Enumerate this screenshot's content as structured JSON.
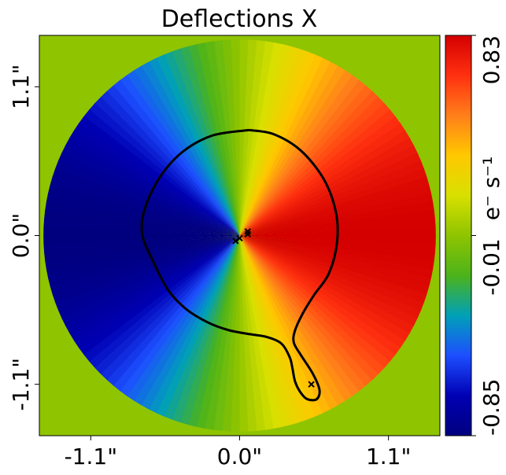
{
  "chart_data": {
    "type": "heatmap",
    "title": "Deflections X",
    "xlabel": "",
    "ylabel": "",
    "x_ticks": [
      {
        "value": -1.1,
        "label": "-1.1\""
      },
      {
        "value": 0.0,
        "label": "0.0\""
      },
      {
        "value": 1.1,
        "label": "1.1\""
      }
    ],
    "y_ticks": [
      {
        "value": 1.1,
        "label": "1.1\""
      },
      {
        "value": 0.0,
        "label": "0.0\""
      },
      {
        "value": -1.1,
        "label": "-1.1\""
      }
    ],
    "xlim": [
      -1.48,
      1.48
    ],
    "ylim": [
      -1.48,
      1.48
    ],
    "mask_radius": 1.45,
    "background_value": -0.01,
    "colorbar": {
      "min": -0.85,
      "max": 0.83,
      "ticks": [
        {
          "value": 0.83,
          "label": "0.83"
        },
        {
          "value": -0.01,
          "label": "-0.01"
        },
        {
          "value": -0.85,
          "label": "-0.85"
        }
      ],
      "unit_label": "e⁻ s⁻¹",
      "colormap": [
        "#00007f",
        "#0000b4",
        "#1d4fff",
        "#00a0b8",
        "#4cb31a",
        "#8fc400",
        "#d8e000",
        "#ffc800",
        "#ff7f1a",
        "#ff3010",
        "#d40000"
      ]
    },
    "critical_curve": [
      [
        0.07,
        0.78
      ],
      [
        0.25,
        0.75
      ],
      [
        0.45,
        0.63
      ],
      [
        0.62,
        0.42
      ],
      [
        0.71,
        0.18
      ],
      [
        0.72,
        -0.05
      ],
      [
        0.66,
        -0.28
      ],
      [
        0.55,
        -0.44
      ],
      [
        0.47,
        -0.57
      ],
      [
        0.41,
        -0.7
      ],
      [
        0.4,
        -0.79
      ],
      [
        0.45,
        -0.88
      ],
      [
        0.54,
        -1.02
      ],
      [
        0.59,
        -1.14
      ],
      [
        0.57,
        -1.21
      ],
      [
        0.5,
        -1.21
      ],
      [
        0.45,
        -1.16
      ],
      [
        0.41,
        -1.08
      ],
      [
        0.39,
        -0.98
      ],
      [
        0.37,
        -0.9
      ],
      [
        0.31,
        -0.8
      ],
      [
        0.2,
        -0.75
      ],
      [
        0.08,
        -0.73
      ],
      [
        -0.08,
        -0.7
      ],
      [
        -0.24,
        -0.64
      ],
      [
        -0.4,
        -0.54
      ],
      [
        -0.53,
        -0.4
      ],
      [
        -0.64,
        -0.19
      ],
      [
        -0.72,
        0.01
      ],
      [
        -0.7,
        0.2
      ],
      [
        -0.59,
        0.43
      ],
      [
        -0.42,
        0.62
      ],
      [
        -0.2,
        0.74
      ],
      [
        0.07,
        0.78
      ]
    ],
    "markers": [
      {
        "x": 0.06,
        "y": 0.03
      },
      {
        "x": 0.06,
        "y": 0.01
      },
      {
        "x": 0.0,
        "y": -0.02
      },
      {
        "x": -0.03,
        "y": -0.04
      },
      {
        "x": 0.53,
        "y": -1.1
      }
    ]
  }
}
